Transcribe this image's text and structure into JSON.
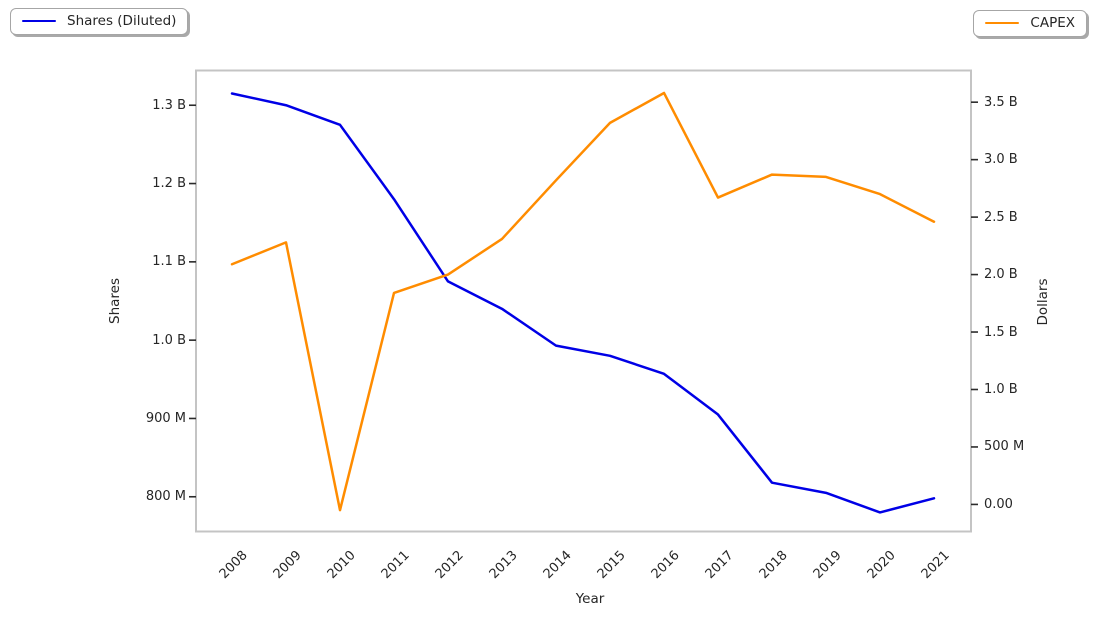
{
  "chart_data": {
    "type": "line",
    "title": "",
    "xlabel": "Year",
    "ylabel_left": "Shares",
    "ylabel_right": "Dollars",
    "unit": "billions",
    "grid": false,
    "categories": [
      "2008",
      "2009",
      "2010",
      "2011",
      "2012",
      "2013",
      "2014",
      "2015",
      "2016",
      "2017",
      "2018",
      "2019",
      "2020",
      "2021"
    ],
    "series": [
      {
        "name": "Shares (Diluted)",
        "axis": "left",
        "color": "#0000e6",
        "values": [
          1.315,
          1.3,
          1.275,
          1.18,
          1.075,
          1.04,
          0.993,
          0.98,
          0.957,
          0.905,
          0.818,
          0.805,
          0.78,
          0.798
        ]
      },
      {
        "name": "CAPEX",
        "axis": "right",
        "color": "#ff8c00",
        "values": [
          2.09,
          2.28,
          -0.05,
          1.84,
          2.0,
          2.31,
          2.82,
          3.32,
          3.58,
          2.67,
          2.87,
          2.85,
          2.7,
          2.46
        ]
      }
    ],
    "ylim_left": [
      0.755,
      1.345
    ],
    "ylim_right": [
      -0.24,
      3.78
    ],
    "left_axis_ticks": [
      {
        "label": "800 M",
        "value": 0.8
      },
      {
        "label": "900 M",
        "value": 0.9
      },
      {
        "label": "1.0 B",
        "value": 1.0
      },
      {
        "label": "1.1 B",
        "value": 1.1
      },
      {
        "label": "1.2 B",
        "value": 1.2
      },
      {
        "label": "1.3 B",
        "value": 1.3
      }
    ],
    "right_axis_ticks": [
      {
        "label": "0.00",
        "value": 0.0
      },
      {
        "label": "500 M",
        "value": 0.5
      },
      {
        "label": "1.0 B",
        "value": 1.0
      },
      {
        "label": "1.5 B",
        "value": 1.5
      },
      {
        "label": "2.0 B",
        "value": 2.0
      },
      {
        "label": "2.5 B",
        "value": 2.5
      },
      {
        "label": "3.0 B",
        "value": 3.0
      },
      {
        "label": "3.5 B",
        "value": 3.5
      }
    ],
    "legend_position": "outside top-left (Shares) and top-right (CAPEX)"
  },
  "style_colors": {
    "frame": "#c4c4c4",
    "tick_mark": "#2b2b2b",
    "text": "#262626"
  }
}
